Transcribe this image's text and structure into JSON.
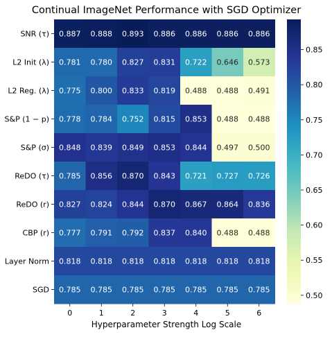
{
  "chart_data": {
    "type": "heatmap",
    "title": "Continual ImageNet Performance with SGD Optimizer",
    "xlabel": "Hyperparameter Strength Log Scale",
    "ylabel": "",
    "x_categories": [
      "0",
      "1",
      "2",
      "3",
      "4",
      "5",
      "6"
    ],
    "y_categories": [
      "SNR (τ)",
      "L2 Init (λ)",
      "L2 Reg. (λ)",
      "S&P (1 − p)",
      "S&P (σ)",
      "ReDO (τ)",
      "ReDO (r)",
      "CBP (r)",
      "Layer Norm",
      "SGD"
    ],
    "values": [
      [
        0.887,
        0.888,
        0.893,
        0.886,
        0.886,
        0.886,
        0.886
      ],
      [
        0.781,
        0.78,
        0.827,
        0.831,
        0.722,
        0.646,
        0.573
      ],
      [
        0.775,
        0.8,
        0.833,
        0.819,
        0.488,
        0.488,
        0.491
      ],
      [
        0.778,
        0.784,
        0.752,
        0.815,
        0.853,
        0.488,
        0.488
      ],
      [
        0.848,
        0.839,
        0.849,
        0.853,
        0.844,
        0.497,
        0.5
      ],
      [
        0.785,
        0.856,
        0.87,
        0.843,
        0.721,
        0.727,
        0.726
      ],
      [
        0.827,
        0.824,
        0.844,
        0.87,
        0.867,
        0.864,
        0.836
      ],
      [
        0.777,
        0.791,
        0.792,
        0.837,
        0.84,
        0.488,
        0.488
      ],
      [
        0.818,
        0.818,
        0.818,
        0.818,
        0.818,
        0.818,
        0.818
      ],
      [
        0.785,
        0.785,
        0.785,
        0.785,
        0.785,
        0.785,
        0.785
      ]
    ],
    "value_format": "0.000",
    "colormap": "YlGnBu",
    "color_range": [
      0.488,
      0.893
    ],
    "colorbar_ticks": [
      "0.50",
      "0.55",
      "0.60",
      "0.65",
      "0.70",
      "0.75",
      "0.80",
      "0.85"
    ],
    "colorbar_position": "right",
    "grid": false
  }
}
